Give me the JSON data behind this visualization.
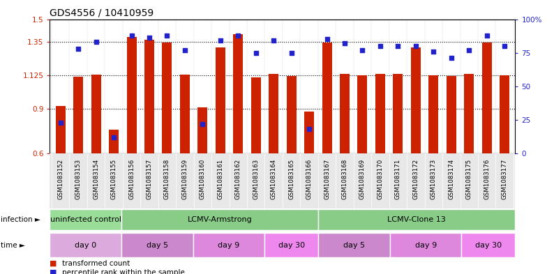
{
  "title": "GDS4556 / 10410959",
  "samples": [
    "GSM1083152",
    "GSM1083153",
    "GSM1083154",
    "GSM1083155",
    "GSM1083156",
    "GSM1083157",
    "GSM1083158",
    "GSM1083159",
    "GSM1083160",
    "GSM1083161",
    "GSM1083162",
    "GSM1083163",
    "GSM1083164",
    "GSM1083165",
    "GSM1083166",
    "GSM1083167",
    "GSM1083168",
    "GSM1083169",
    "GSM1083170",
    "GSM1083171",
    "GSM1083172",
    "GSM1083173",
    "GSM1083174",
    "GSM1083175",
    "GSM1083176",
    "GSM1083177"
  ],
  "bar_values": [
    0.92,
    1.115,
    1.13,
    0.76,
    1.38,
    1.36,
    1.345,
    1.13,
    0.91,
    1.31,
    1.4,
    1.11,
    1.135,
    1.12,
    0.88,
    1.345,
    1.135,
    1.125,
    1.135,
    1.135,
    1.31,
    1.125,
    1.12,
    1.135,
    1.345,
    1.125
  ],
  "percentile_values": [
    23,
    78,
    83,
    12,
    88,
    86,
    88,
    77,
    22,
    84,
    88,
    75,
    84,
    75,
    18,
    85,
    82,
    77,
    80,
    80,
    80,
    76,
    71,
    77,
    88,
    80
  ],
  "bar_color": "#cc2200",
  "percentile_color": "#2222cc",
  "ylim_left": [
    0.6,
    1.5
  ],
  "ylim_right": [
    0,
    100
  ],
  "yticks_left": [
    0.6,
    0.9,
    1.125,
    1.35,
    1.5
  ],
  "ytick_labels_left": [
    "0.6",
    "0.9",
    "1.125",
    "1.35",
    "1.5"
  ],
  "yticks_right": [
    0,
    25,
    50,
    75,
    100
  ],
  "ytick_labels_right": [
    "0",
    "25",
    "50",
    "75",
    "100%"
  ],
  "hlines": [
    0.9,
    1.125,
    1.35
  ],
  "infection_groups": [
    {
      "label": "uninfected control",
      "start": 0,
      "end": 4,
      "color": "#99dd99"
    },
    {
      "label": "LCMV-Armstrong",
      "start": 4,
      "end": 15,
      "color": "#88cc88"
    },
    {
      "label": "LCMV-Clone 13",
      "start": 15,
      "end": 26,
      "color": "#88cc88"
    }
  ],
  "time_groups": [
    {
      "label": "day 0",
      "start": 0,
      "end": 4,
      "color": "#ddaadd"
    },
    {
      "label": "day 5",
      "start": 4,
      "end": 8,
      "color": "#cc88cc"
    },
    {
      "label": "day 9",
      "start": 8,
      "end": 12,
      "color": "#dd88dd"
    },
    {
      "label": "day 30",
      "start": 12,
      "end": 15,
      "color": "#ee88ee"
    },
    {
      "label": "day 5",
      "start": 15,
      "end": 19,
      "color": "#cc88cc"
    },
    {
      "label": "day 9",
      "start": 19,
      "end": 23,
      "color": "#dd88dd"
    },
    {
      "label": "day 30",
      "start": 23,
      "end": 26,
      "color": "#ee88ee"
    }
  ],
  "legend_items": [
    {
      "color": "#cc2200",
      "label": "transformed count"
    },
    {
      "color": "#2222cc",
      "label": "percentile rank within the sample"
    }
  ],
  "bar_width": 0.55,
  "xlabel_fontsize": 6.2,
  "title_fontsize": 10,
  "tick_fontsize": 7.5,
  "row_label_fontsize": 7.5,
  "group_label_fontsize": 8,
  "legend_fontsize": 7.5
}
